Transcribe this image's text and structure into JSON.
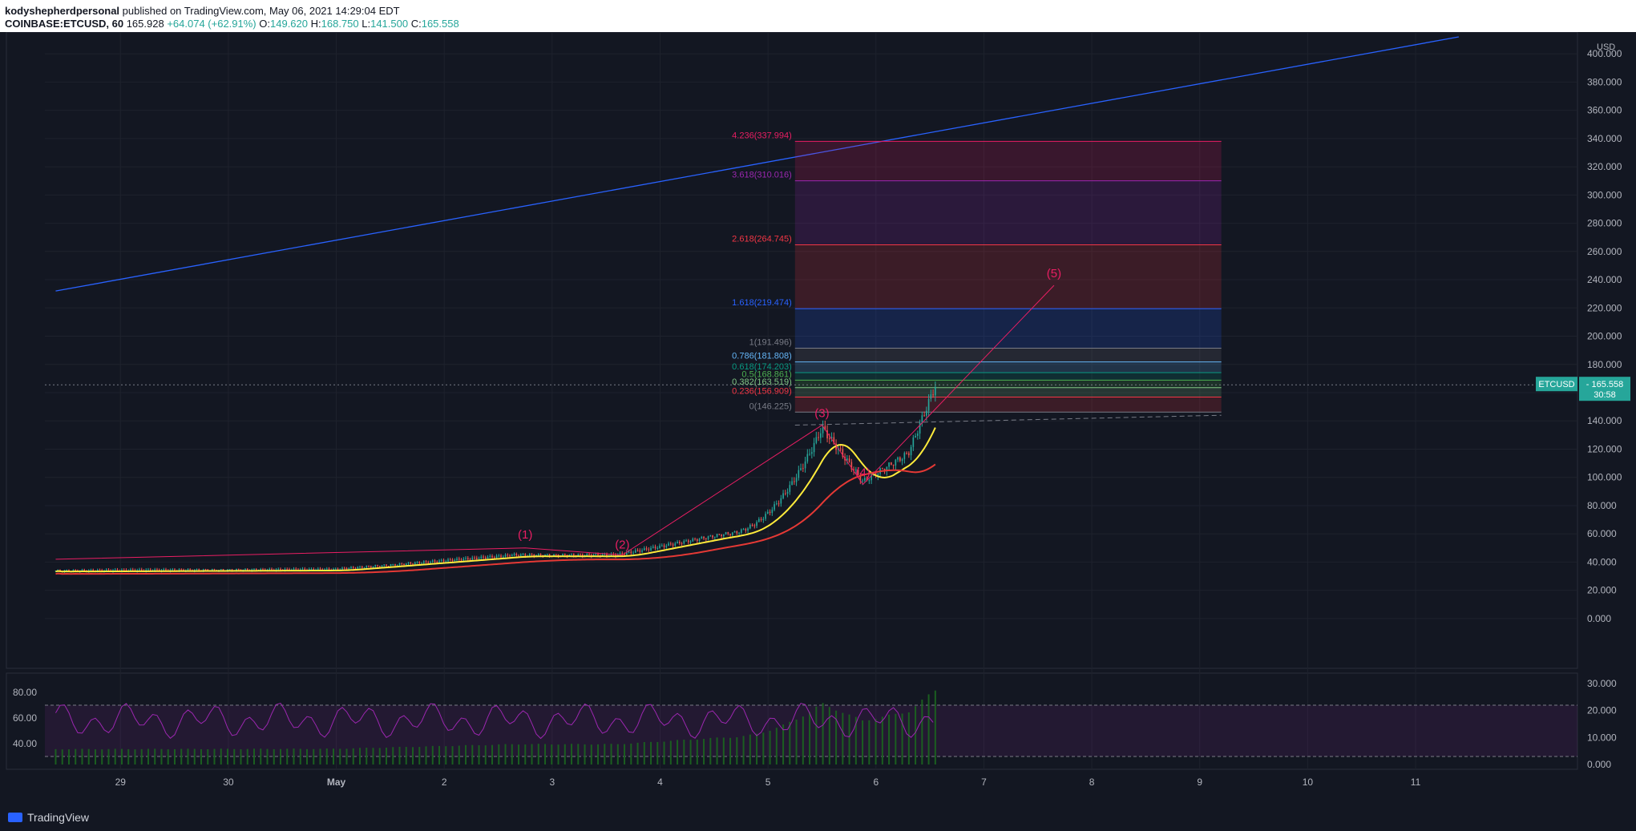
{
  "header": {
    "author": "kodyshepherdpersonal",
    "published": "published on TradingView.com, May 06, 2021 14:29:04 EDT",
    "symbol": "COINBASE:ETCUSD, 60",
    "last": "165.928",
    "change": "+64.074 (+62.91%)",
    "o_label": "O:",
    "o": "149.620",
    "h_label": "H:",
    "h": "168.750",
    "l_label": "L:",
    "l": "141.500",
    "c_label": "C:",
    "c": "165.558"
  },
  "footer": {
    "brand": "TradingView"
  },
  "chart_data": {
    "type": "candlestick",
    "currency": "USD",
    "price_axis": {
      "ticks": [
        0,
        20,
        40,
        60,
        80,
        100,
        120,
        140,
        160,
        180,
        200,
        220,
        240,
        260,
        280,
        300,
        320,
        340,
        360,
        380,
        400
      ],
      "ylim": [
        -8,
        412
      ],
      "labels": [
        "0.000",
        "20.000",
        "40.000",
        "60.000",
        "80.000",
        "100.000",
        "120.000",
        "140.000",
        "160.000",
        "180.000",
        "200.000",
        "220.000",
        "240.000",
        "260.000",
        "280.000",
        "300.000",
        "320.000",
        "340.000",
        "360.000",
        "380.000",
        "400.000"
      ]
    },
    "time_axis": {
      "labels": [
        "29",
        "30",
        "May",
        "2",
        "3",
        "4",
        "5",
        "6",
        "7",
        "8",
        "9",
        "10",
        "11"
      ],
      "days": [
        29,
        30,
        31,
        32,
        33,
        34,
        35,
        36,
        37,
        38,
        39,
        40,
        41
      ],
      "xlim": [
        28.3,
        42.5
      ]
    },
    "last_price": {
      "symbol": "ETCUSD",
      "value": "165.558",
      "countdown": "30:58",
      "y": 165.558
    },
    "fib_levels": [
      {
        "label": "0(146.225)",
        "ratio": 0,
        "value": 146.225,
        "color": "#787b86"
      },
      {
        "label": "0.236(156.909)",
        "ratio": 0.236,
        "value": 156.909,
        "color": "#f23645"
      },
      {
        "label": "0.382(163.519)",
        "ratio": 0.382,
        "value": 163.519,
        "color": "#81c784"
      },
      {
        "label": "0.5(168.861)",
        "ratio": 0.5,
        "value": 168.861,
        "color": "#4caf50"
      },
      {
        "label": "0.618(174.203)",
        "ratio": 0.618,
        "value": 174.203,
        "color": "#089981"
      },
      {
        "label": "0.786(181.808)",
        "ratio": 0.786,
        "value": 181.808,
        "color": "#64b5f6"
      },
      {
        "label": "1(191.496)",
        "ratio": 1,
        "value": 191.496,
        "color": "#787b86"
      },
      {
        "label": "1.618(219.474)",
        "ratio": 1.618,
        "value": 219.474,
        "color": "#2962ff"
      },
      {
        "label": "2.618(264.745)",
        "ratio": 2.618,
        "value": 264.745,
        "color": "#f23645"
      },
      {
        "label": "3.618(310.016)",
        "ratio": 3.618,
        "value": 310.016,
        "color": "#9c27b0"
      },
      {
        "label": "4.236(337.994)",
        "ratio": 4.236,
        "value": 337.994,
        "color": "#e91e63"
      }
    ],
    "fib_range_days": [
      35.25,
      39.2
    ],
    "wave_labels": [
      {
        "label": "(1)",
        "day": 32.75,
        "value": 51
      },
      {
        "label": "(2)",
        "day": 33.65,
        "value": 44
      },
      {
        "label": "(3)",
        "day": 35.5,
        "value": 137
      },
      {
        "label": "(4)",
        "day": 35.88,
        "value": 95
      },
      {
        "label": "(5)",
        "day": 37.65,
        "value": 236
      }
    ],
    "trendline": {
      "from": {
        "day": 28.4,
        "value": 232
      },
      "to": {
        "day": 41.4,
        "value": 412
      }
    },
    "rsi_axis": {
      "labels": [
        "80.00",
        "60.00",
        "40.00"
      ],
      "values": [
        80,
        60,
        40
      ],
      "ylim": [
        20,
        95
      ]
    },
    "volume_axis": {
      "labels": [
        "30.000",
        "20.000",
        "10.000",
        "0.000"
      ],
      "values": [
        30,
        20,
        10,
        0
      ],
      "ylim": [
        0,
        32
      ]
    },
    "rsi_bands": [
      70,
      30
    ],
    "colors": {
      "up": "#26a69a",
      "down": "#ef5350",
      "ma_fast": "#ffeb3b",
      "ma_slow": "#e53935",
      "rsi": "#9c27b0",
      "wave": "#e91e63",
      "trend": "#2962ff"
    }
  }
}
